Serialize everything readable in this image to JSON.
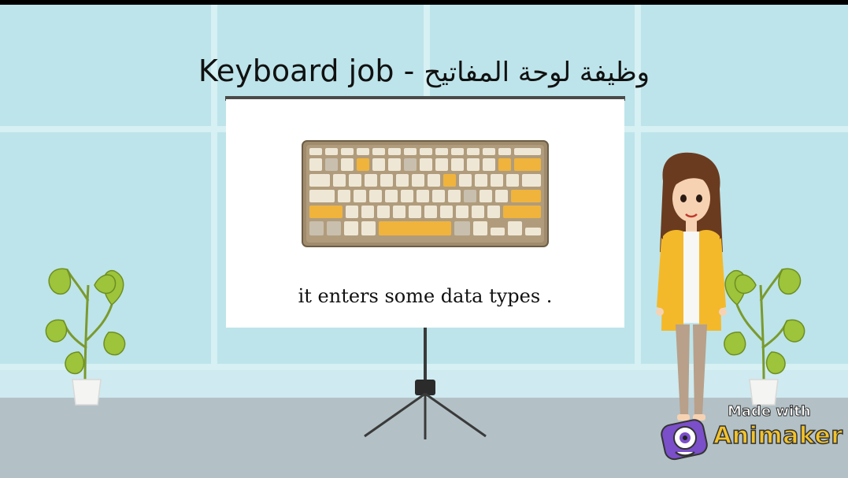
{
  "title": {
    "english": "Keyboard  job",
    "separator": " - ",
    "arabic": "وظيفة لوحة المفاتيح"
  },
  "board": {
    "caption": "it enters some data types ."
  },
  "watermark": {
    "made_with": "Made with",
    "brand": "Animaker"
  },
  "colors": {
    "wall": "#bde4ea",
    "board": "#ffffff",
    "keyboard_frame": "#9c8a6c",
    "key_default": "#efe7d6",
    "key_accent": "#f0b43c",
    "key_muted": "#c9bfae",
    "jacket": "#f3b92b",
    "brand_yellow": "#f2c22a"
  },
  "icons": {
    "keyboard": "keyboard-icon",
    "plant_left": "plant-icon",
    "plant_right": "plant-icon",
    "character": "woman-character",
    "logo": "animaker-logo-icon"
  }
}
